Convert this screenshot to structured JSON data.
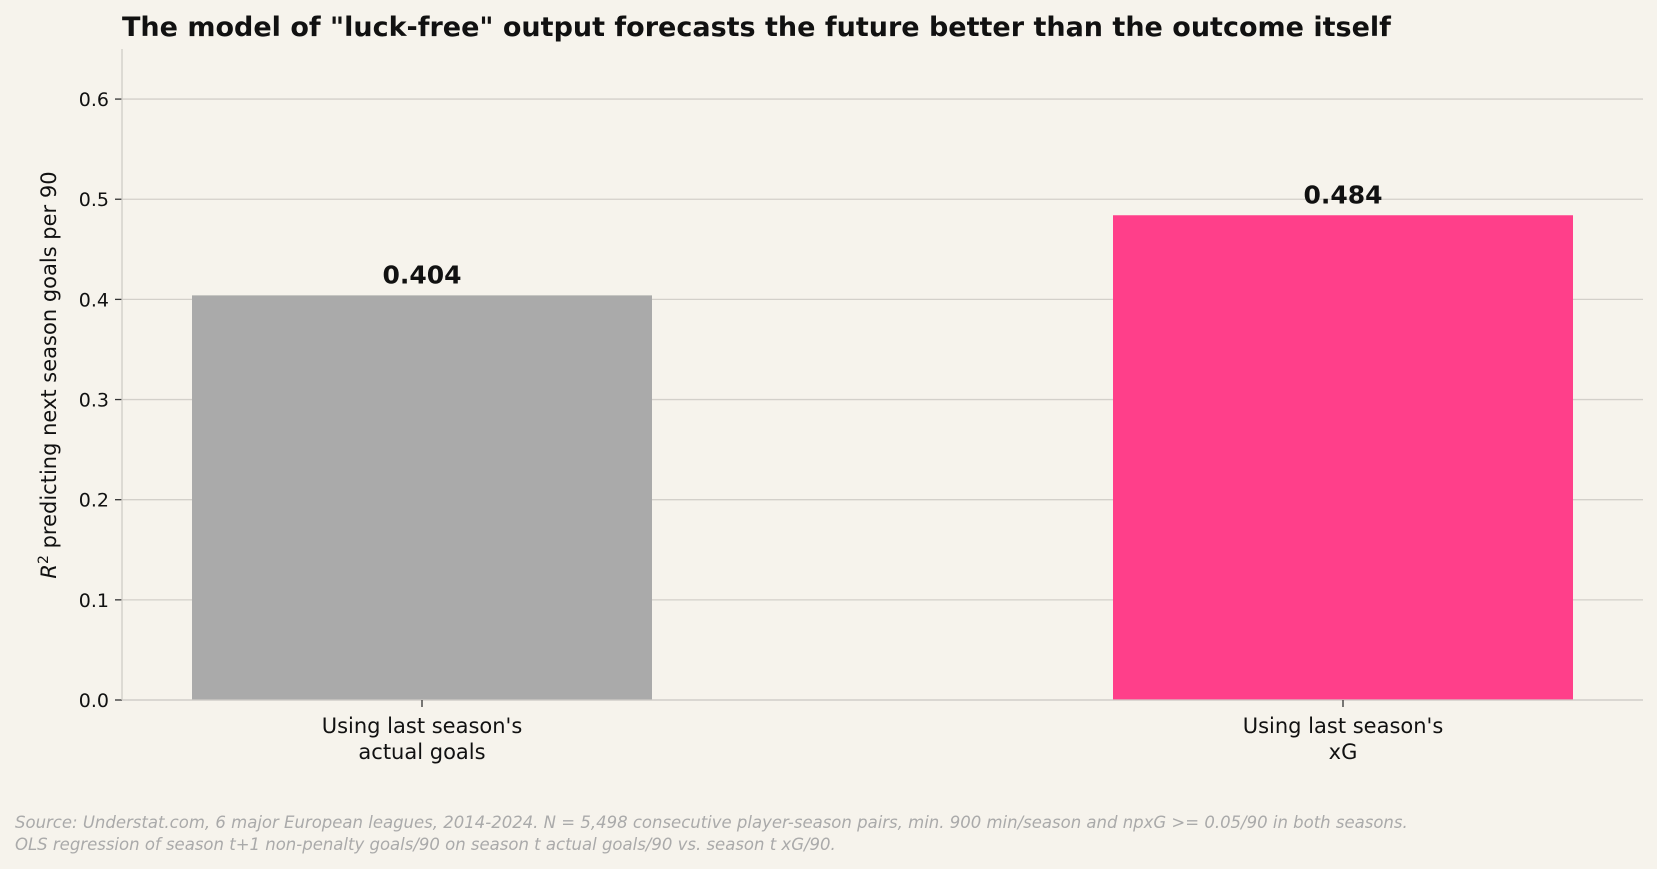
{
  "chart_data": {
    "type": "bar",
    "title": "The model of \"luck-free\" output forecasts the future better than the outcome itself",
    "ylabel_prefix": "R",
    "ylabel_sup": "2",
    "ylabel_rest": " predicting next season goals per 90",
    "categories": [
      [
        "Using last season's",
        "actual goals"
      ],
      [
        "Using last season's",
        "xG"
      ]
    ],
    "values": [
      0.404,
      0.484
    ],
    "value_labels": [
      "0.404",
      "0.484"
    ],
    "colors": [
      "#aaaaaa",
      "#ff3f8a"
    ],
    "ylim": [
      0,
      0.65
    ],
    "yticks": [
      0.0,
      0.1,
      0.2,
      0.3,
      0.4,
      0.5,
      0.6
    ],
    "ytick_labels": [
      "0.0",
      "0.1",
      "0.2",
      "0.3",
      "0.4",
      "0.5",
      "0.6"
    ],
    "grid": "horizontal",
    "source_lines": [
      "Source: Understat.com, 6 major European leagues, 2014-2024. N = 5,498 consecutive player-season pairs, min. 900 min/season and npxG >= 0.05/90 in both seasons.",
      "OLS regression of season t+1 non-penalty goals/90 on season t actual goals/90 vs. season t xG/90."
    ]
  }
}
